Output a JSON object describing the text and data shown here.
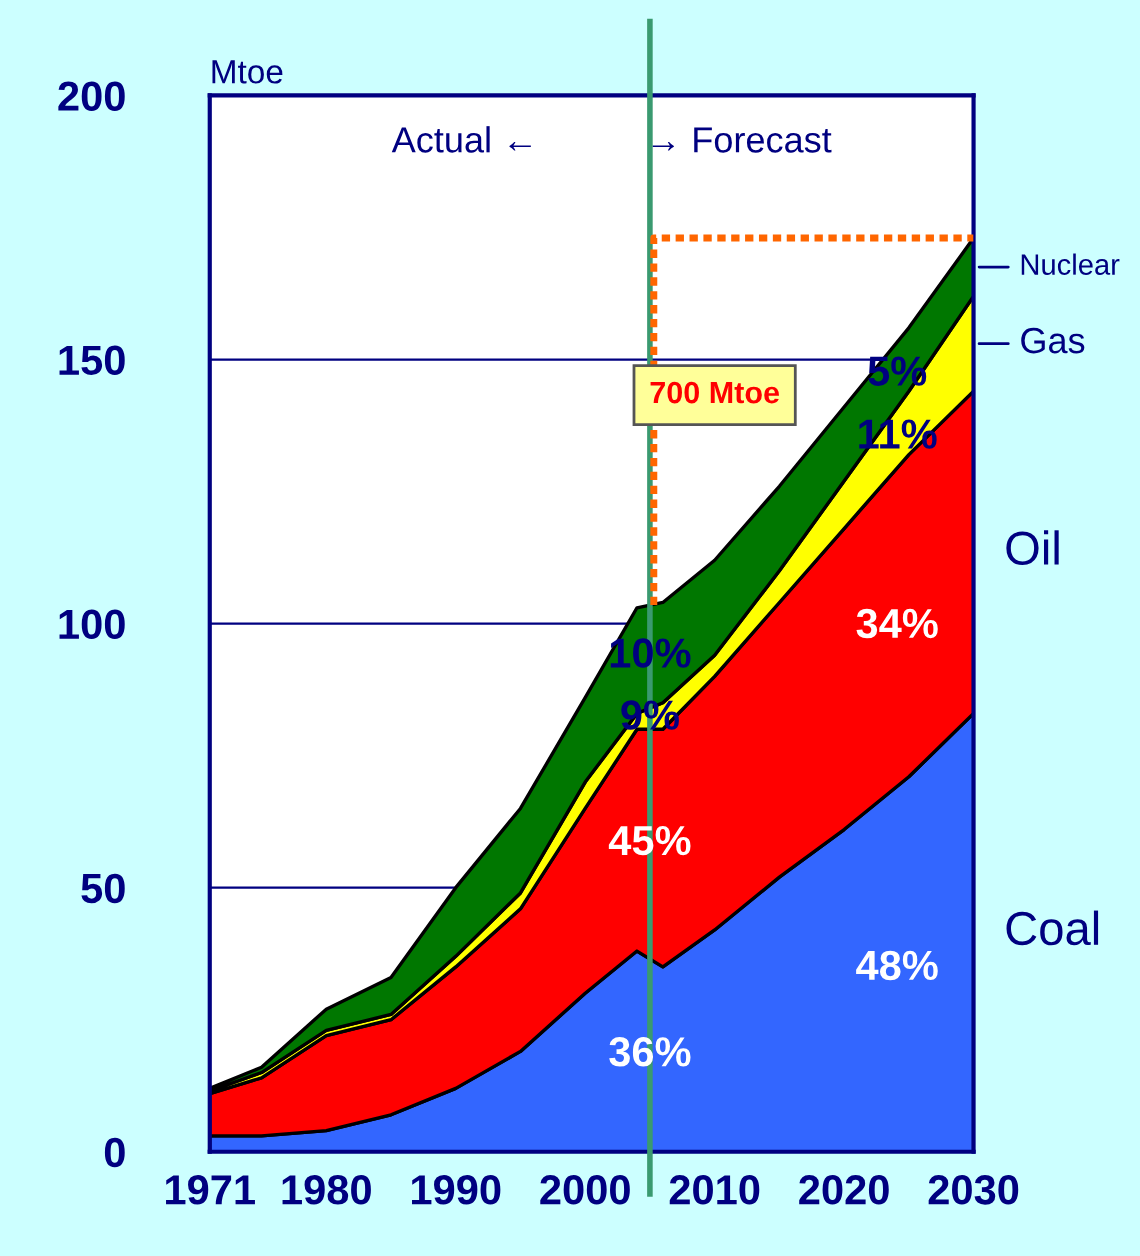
{
  "chart_data": {
    "type": "area",
    "stacked": true,
    "ylabel": "Mtoe",
    "x": [
      1971,
      1975,
      1980,
      1985,
      1990,
      1995,
      2000,
      2004,
      2006,
      2010,
      2015,
      2020,
      2025,
      2030
    ],
    "series": [
      {
        "name": "Coal",
        "color": "#3366ff",
        "values": [
          3,
          3,
          4,
          7,
          12,
          19,
          30,
          38,
          35,
          42,
          52,
          61,
          71,
          83
        ]
      },
      {
        "name": "Oil",
        "color": "#ff0000",
        "values": [
          8,
          11,
          18,
          18,
          23,
          27,
          35,
          42,
          45,
          48,
          52,
          57,
          61,
          61
        ]
      },
      {
        "name": "Gas",
        "color": "#ffff00",
        "values": [
          0.5,
          1,
          1,
          1,
          2,
          3,
          5,
          3,
          5,
          4,
          6,
          9,
          12,
          18
        ]
      },
      {
        "name": "Nuclear",
        "color": "#007700",
        "values": [
          0.5,
          1,
          4,
          7,
          13,
          16,
          16,
          20,
          19,
          18,
          16,
          14,
          12,
          11
        ]
      }
    ],
    "xlim": [
      1971,
      2030
    ],
    "ylim": [
      0,
      200
    ],
    "xticks": [
      1971,
      1980,
      1990,
      2000,
      2010,
      2020,
      2030
    ],
    "yticks": [
      0,
      50,
      100,
      150,
      200
    ],
    "grid": "y",
    "ref_lines": [
      {
        "axis": "x",
        "value": 2005,
        "color": "#3a9a70"
      }
    ],
    "annotations": [
      "Actual ←",
      "→ Forecast",
      "700 Mtoe",
      "36%",
      "45%",
      "9%",
      "10%",
      "48%",
      "34%",
      "11%",
      "5%"
    ]
  }
}
